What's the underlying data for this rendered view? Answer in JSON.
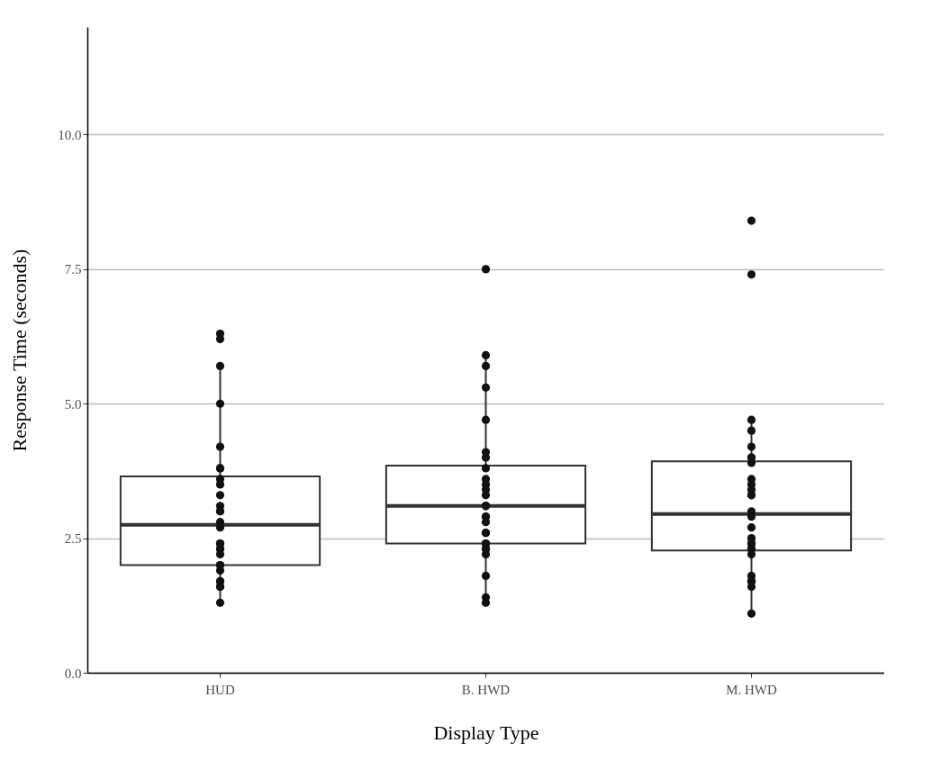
{
  "chart_data": {
    "type": "box",
    "xlabel": "Display Type",
    "ylabel": "Response Time (seconds)",
    "categories": [
      "HUD",
      "B. HWD",
      "M. HWD"
    ],
    "boxes": [
      {
        "low": 1.3,
        "q1": 2.0,
        "median": 2.75,
        "q3": 3.65,
        "high": 5.7
      },
      {
        "low": 1.3,
        "q1": 2.4,
        "median": 3.1,
        "q3": 3.85,
        "high": 5.9
      },
      {
        "low": 1.1,
        "q1": 2.27,
        "median": 2.95,
        "q3": 3.93,
        "high": 4.7
      }
    ],
    "series": [
      {
        "type": "scatter",
        "color": "#111111",
        "x": [
          "HUD",
          "HUD",
          "HUD",
          "HUD",
          "HUD",
          "HUD",
          "HUD",
          "HUD",
          "HUD",
          "HUD",
          "HUD",
          "HUD",
          "HUD",
          "HUD",
          "HUD",
          "HUD",
          "HUD",
          "HUD",
          "HUD",
          "HUD",
          "HUD",
          "HUD",
          "HUD",
          "HUD",
          "HUD",
          "HUD",
          "HUD",
          "HUD",
          "B. HWD",
          "B. HWD",
          "B. HWD",
          "B. HWD",
          "B. HWD",
          "B. HWD",
          "B. HWD",
          "B. HWD",
          "B. HWD",
          "B. HWD",
          "B. HWD",
          "B. HWD",
          "B. HWD",
          "B. HWD",
          "B. HWD",
          "B. HWD",
          "B. HWD",
          "B. HWD",
          "B. HWD",
          "B. HWD",
          "B. HWD",
          "B. HWD",
          "B. HWD",
          "B. HWD",
          "B. HWD",
          "B. HWD",
          "B. HWD",
          "B. HWD",
          "M. HWD",
          "M. HWD",
          "M. HWD",
          "M. HWD",
          "M. HWD",
          "M. HWD",
          "M. HWD",
          "M. HWD",
          "M. HWD",
          "M. HWD",
          "M. HWD",
          "M. HWD",
          "M. HWD",
          "M. HWD",
          "M. HWD",
          "M. HWD",
          "M. HWD",
          "M. HWD",
          "M. HWD",
          "M. HWD",
          "M. HWD",
          "M. HWD",
          "M. HWD",
          "M. HWD",
          "M. HWD",
          "M. HWD",
          "M. HWD",
          "M. HWD"
        ],
        "values": [
          6.3,
          6.2,
          5.7,
          5.0,
          4.2,
          3.8,
          3.8,
          3.6,
          3.5,
          3.3,
          3.1,
          3.0,
          3.0,
          2.8,
          2.7,
          2.4,
          2.4,
          2.3,
          2.3,
          2.2,
          2.0,
          2.0,
          1.9,
          1.7,
          1.7,
          1.6,
          1.6,
          1.3,
          7.5,
          5.9,
          5.7,
          5.3,
          4.7,
          4.1,
          4.0,
          3.8,
          3.6,
          3.5,
          3.4,
          3.3,
          3.1,
          3.1,
          3.1,
          2.9,
          2.9,
          2.8,
          2.6,
          2.6,
          2.4,
          2.4,
          2.3,
          2.3,
          2.2,
          1.8,
          1.4,
          1.3,
          8.4,
          7.4,
          4.7,
          4.5,
          4.2,
          4.0,
          4.0,
          3.9,
          3.6,
          3.5,
          3.4,
          3.3,
          3.3,
          3.0,
          2.9,
          2.7,
          2.5,
          2.4,
          2.4,
          2.3,
          2.3,
          2.2,
          1.8,
          1.7,
          1.7,
          1.7,
          1.6,
          1.1
        ]
      }
    ],
    "ylim": [
      0,
      12
    ],
    "yticks": [
      {
        "value": 0,
        "label": "0.0"
      },
      {
        "value": 2.5,
        "label": "2.5"
      },
      {
        "value": 5,
        "label": "5.0"
      },
      {
        "value": 7.5,
        "label": "7.5"
      },
      {
        "value": 10,
        "label": "10.0"
      }
    ],
    "grid": "y"
  }
}
